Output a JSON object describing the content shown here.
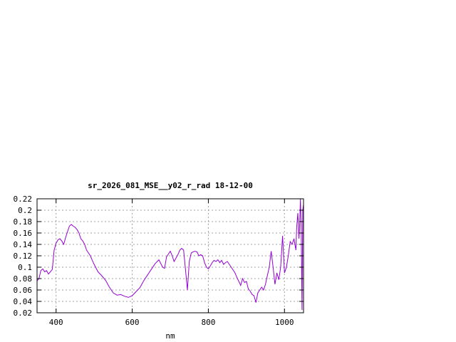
{
  "chart_data": {
    "type": "line",
    "title": "sr_2026_081_MSE__y02_r_rad 18-12-00",
    "xlabel": "nm",
    "ylabel": "",
    "xlim": [
      350,
      1050
    ],
    "ylim": [
      0.02,
      0.22
    ],
    "x_ticks": [
      400,
      600,
      800,
      1000
    ],
    "x_tick_labels": [
      "400",
      "600",
      "800",
      "1000"
    ],
    "y_ticks": [
      0.02,
      0.04,
      0.06,
      0.08,
      0.1,
      0.12,
      0.14,
      0.16,
      0.18,
      0.2,
      0.22
    ],
    "y_tick_labels": [
      "0.02",
      "0.04",
      "0.06",
      "0.08",
      "0.1",
      "0.12",
      "0.14",
      "0.16",
      "0.18",
      "0.2",
      "0.22"
    ],
    "grid": true,
    "line_color": "#9400d3",
    "series": [
      {
        "x": [
          350,
          355,
          360,
          365,
          370,
          375,
          380,
          385,
          390,
          395,
          400,
          405,
          410,
          415,
          420,
          425,
          430,
          435,
          440,
          445,
          450,
          455,
          460,
          465,
          470,
          475,
          480,
          485,
          490,
          495,
          500,
          510,
          520,
          530,
          540,
          550,
          560,
          570,
          580,
          590,
          600,
          610,
          620,
          630,
          640,
          650,
          660,
          670,
          680,
          685,
          690,
          695,
          700,
          705,
          710,
          715,
          720,
          725,
          730,
          735,
          740,
          745,
          750,
          755,
          760,
          765,
          770,
          775,
          780,
          785,
          790,
          795,
          800,
          805,
          810,
          815,
          820,
          825,
          830,
          835,
          840,
          845,
          850,
          855,
          860,
          865,
          870,
          875,
          880,
          885,
          890,
          895,
          900,
          905,
          910,
          915,
          920,
          925,
          930,
          935,
          940,
          945,
          950,
          955,
          960,
          965,
          970,
          975,
          980,
          985,
          990,
          995,
          1000,
          1005,
          1010,
          1015,
          1020,
          1025,
          1030,
          1032,
          1035,
          1038,
          1040,
          1042,
          1044,
          1046,
          1048,
          1050
        ],
        "y": [
          0.076,
          0.08,
          0.094,
          0.097,
          0.092,
          0.094,
          0.088,
          0.092,
          0.096,
          0.13,
          0.142,
          0.148,
          0.15,
          0.146,
          0.14,
          0.152,
          0.162,
          0.172,
          0.175,
          0.172,
          0.17,
          0.166,
          0.16,
          0.15,
          0.146,
          0.14,
          0.13,
          0.125,
          0.12,
          0.112,
          0.105,
          0.092,
          0.085,
          0.077,
          0.065,
          0.055,
          0.051,
          0.052,
          0.049,
          0.047,
          0.05,
          0.057,
          0.064,
          0.076,
          0.086,
          0.096,
          0.106,
          0.113,
          0.1,
          0.098,
          0.118,
          0.123,
          0.128,
          0.12,
          0.11,
          0.116,
          0.122,
          0.13,
          0.133,
          0.13,
          0.095,
          0.06,
          0.11,
          0.125,
          0.127,
          0.128,
          0.127,
          0.12,
          0.122,
          0.12,
          0.108,
          0.1,
          0.097,
          0.102,
          0.108,
          0.112,
          0.11,
          0.113,
          0.108,
          0.112,
          0.105,
          0.108,
          0.11,
          0.105,
          0.1,
          0.095,
          0.09,
          0.082,
          0.075,
          0.068,
          0.08,
          0.073,
          0.075,
          0.062,
          0.058,
          0.052,
          0.05,
          0.038,
          0.055,
          0.06,
          0.065,
          0.06,
          0.07,
          0.085,
          0.1,
          0.128,
          0.1,
          0.07,
          0.09,
          0.078,
          0.1,
          0.155,
          0.09,
          0.1,
          0.12,
          0.145,
          0.14,
          0.15,
          0.13,
          0.17,
          0.195,
          0.15,
          0.18,
          0.22,
          0.16,
          0.025,
          0.2,
          0.21
        ]
      }
    ]
  }
}
